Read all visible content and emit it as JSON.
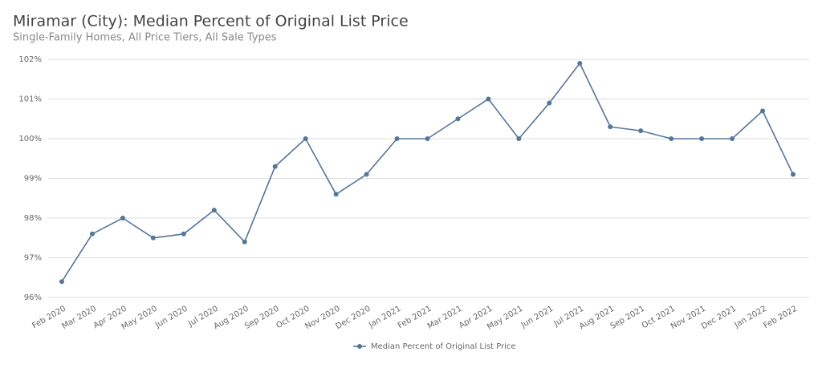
{
  "chart_data": {
    "type": "line",
    "title": "Miramar (City): Median Percent of Original List Price",
    "subtitle": "Single-Family Homes, All Price Tiers, All Sale Types",
    "categories": [
      "Feb 2020",
      "Mar 2020",
      "Apr 2020",
      "May 2020",
      "Jun 2020",
      "Jul 2020",
      "Aug 2020",
      "Sep 2020",
      "Oct 2020",
      "Nov 2020",
      "Dec 2020",
      "Jan 2021",
      "Feb 2021",
      "Mar 2021",
      "Apr 2021",
      "May 2021",
      "Jun 2021",
      "Jul 2021",
      "Aug 2021",
      "Sep 2021",
      "Oct 2021",
      "Nov 2021",
      "Dec 2021",
      "Jan 2022",
      "Feb 2022"
    ],
    "series": [
      {
        "name": "Median Percent of Original List Price",
        "color": "#53769a",
        "values": [
          96.4,
          97.6,
          98.0,
          97.5,
          97.6,
          98.2,
          97.4,
          99.3,
          100.0,
          98.6,
          99.1,
          100.0,
          100.0,
          100.5,
          101.0,
          100.0,
          100.9,
          101.9,
          100.3,
          100.2,
          100.0,
          100.0,
          100.0,
          100.7,
          99.1
        ]
      }
    ],
    "ylim": [
      96,
      102
    ],
    "yticks": [
      {
        "value": 96,
        "label": "96%"
      },
      {
        "value": 97,
        "label": "97%"
      },
      {
        "value": 98,
        "label": "98%"
      },
      {
        "value": 99,
        "label": "99%"
      },
      {
        "value": 100,
        "label": "100%"
      },
      {
        "value": 101,
        "label": "101%"
      },
      {
        "value": 102,
        "label": "102%"
      }
    ],
    "grid": true,
    "legend": "bottom"
  }
}
